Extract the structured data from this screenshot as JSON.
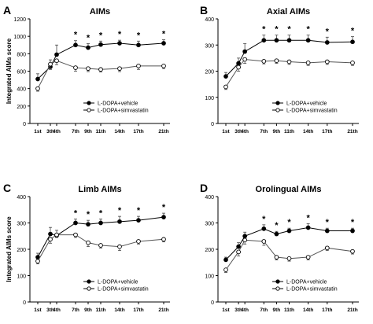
{
  "chart_data": [
    {
      "type": "line",
      "panel_letter": "A",
      "title": "AIMs",
      "ylabel": "Integrated AIMs score",
      "xlabel": "",
      "ylim": [
        0,
        1200
      ],
      "yticks": [
        0,
        200,
        400,
        600,
        800,
        1000,
        1200
      ],
      "categories": [
        "1st",
        "3th",
        "4th",
        "7th",
        "9th",
        "11th",
        "14th",
        "17th",
        "21th"
      ],
      "x": [
        1,
        3,
        4,
        7,
        9,
        11,
        14,
        17,
        21
      ],
      "legend_position": "bottom-right",
      "series": [
        {
          "name": "L-DOPA+vehicle",
          "marker": "filled",
          "values": [
            510,
            650,
            790,
            900,
            870,
            905,
            920,
            900,
            920
          ],
          "errors": [
            60,
            80,
            110,
            50,
            45,
            40,
            35,
            45,
            40
          ]
        },
        {
          "name": "L-DOPA+simvastatin",
          "marker": "open",
          "values": [
            400,
            680,
            720,
            640,
            630,
            620,
            630,
            660,
            660
          ],
          "errors": [
            30,
            60,
            45,
            40,
            35,
            30,
            35,
            40,
            30
          ]
        }
      ],
      "significance": [
        "",
        "",
        "",
        "*",
        "*",
        "*",
        "*",
        "*",
        "*"
      ]
    },
    {
      "type": "line",
      "panel_letter": "B",
      "title": "Axial AIMs",
      "ylabel": "",
      "xlabel": "",
      "ylim": [
        0,
        400
      ],
      "yticks": [
        0,
        100,
        200,
        300,
        400
      ],
      "categories": [
        "1st",
        "3th",
        "4th",
        "7th",
        "9th",
        "11th",
        "14th",
        "17th",
        "21th"
      ],
      "x": [
        1,
        3,
        4,
        7,
        9,
        11,
        14,
        17,
        21
      ],
      "legend_position": "bottom-right",
      "series": [
        {
          "name": "L-DOPA+vehicle",
          "marker": "filled",
          "values": [
            180,
            230,
            275,
            318,
            318,
            318,
            318,
            310,
            312
          ],
          "errors": [
            15,
            20,
            30,
            20,
            20,
            20,
            20,
            20,
            20
          ]
        },
        {
          "name": "L-DOPA+simvastatin",
          "marker": "open",
          "values": [
            140,
            215,
            245,
            238,
            240,
            236,
            232,
            236,
            232
          ],
          "errors": [
            10,
            15,
            15,
            10,
            10,
            10,
            10,
            10,
            10
          ]
        }
      ],
      "significance": [
        "",
        "",
        "",
        "*",
        "*",
        "*",
        "*",
        "*",
        "*"
      ]
    },
    {
      "type": "line",
      "panel_letter": "C",
      "title": "Limb AIMs",
      "ylabel": "Integrated AIMs score",
      "xlabel": "",
      "ylim": [
        0,
        400
      ],
      "yticks": [
        0,
        100,
        200,
        300,
        400
      ],
      "categories": [
        "1st",
        "3th",
        "4th",
        "7th",
        "9th",
        "11th",
        "14th",
        "17th",
        "21th"
      ],
      "x": [
        1,
        3,
        4,
        7,
        9,
        11,
        14,
        17,
        21
      ],
      "legend_position": "bottom-right",
      "series": [
        {
          "name": "L-DOPA+vehicle",
          "marker": "filled",
          "values": [
            170,
            258,
            252,
            300,
            295,
            300,
            305,
            310,
            322
          ],
          "errors": [
            15,
            25,
            20,
            15,
            15,
            15,
            20,
            15,
            15
          ]
        },
        {
          "name": "L-DOPA+simvastatin",
          "marker": "open",
          "values": [
            155,
            238,
            255,
            255,
            225,
            215,
            210,
            230,
            238
          ],
          "errors": [
            10,
            15,
            10,
            10,
            15,
            10,
            15,
            10,
            10
          ]
        }
      ],
      "significance": [
        "",
        "",
        "",
        "*",
        "*",
        "*",
        "*",
        "*",
        "*"
      ]
    },
    {
      "type": "line",
      "panel_letter": "D",
      "title": "Orolingual AIMs",
      "ylabel": "",
      "xlabel": "",
      "ylim": [
        0,
        400
      ],
      "yticks": [
        0,
        100,
        200,
        300,
        400
      ],
      "categories": [
        "1st",
        "3th",
        "4th",
        "7th",
        "9th",
        "11th",
        "14th",
        "17th",
        "21th"
      ],
      "x": [
        1,
        3,
        4,
        7,
        9,
        11,
        14,
        17,
        21
      ],
      "legend_position": "bottom-right",
      "series": [
        {
          "name": "L-DOPA+vehicle",
          "marker": "filled",
          "values": [
            160,
            210,
            250,
            278,
            258,
            270,
            282,
            270,
            270
          ],
          "errors": [
            10,
            15,
            15,
            15,
            10,
            10,
            15,
            10,
            10
          ]
        },
        {
          "name": "L-DOPA+simvastatin",
          "marker": "open",
          "values": [
            122,
            190,
            235,
            230,
            170,
            165,
            170,
            205,
            192
          ],
          "errors": [
            10,
            15,
            15,
            15,
            10,
            10,
            10,
            10,
            10
          ]
        }
      ],
      "significance": [
        "",
        "",
        "",
        "*",
        "*",
        "*",
        "*",
        "*",
        "*"
      ]
    }
  ]
}
